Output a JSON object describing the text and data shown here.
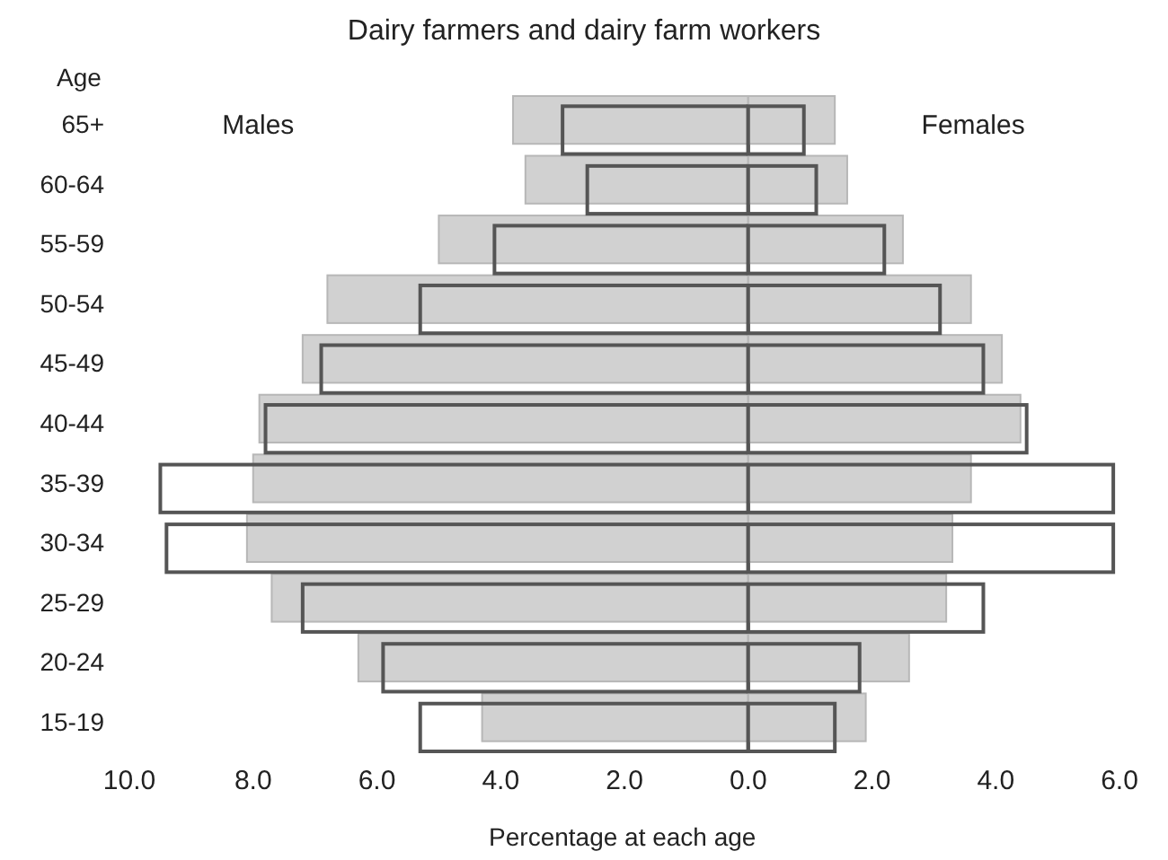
{
  "chart_data": {
    "type": "bar",
    "orientation": "horizontal",
    "title": "Dairy farmers and dairy farm workers",
    "ylabel": "Age",
    "xlabel": "Percentage at each age",
    "categories": [
      "65+",
      "60-64",
      "55-59",
      "50-54",
      "45-49",
      "40-44",
      "35-39",
      "30-34",
      "25-29",
      "20-24",
      "15-19"
    ],
    "series": [
      {
        "color": "#cccccc",
        "values": [
          -3.8,
          -3.6,
          -5.0,
          -6.8,
          -7.2,
          -7.9,
          -8.0,
          -8.1,
          -7.7,
          -6.3,
          -4.3
        ]
      },
      {
        "color": "#555555",
        "values": [
          -3.0,
          -2.6,
          -4.1,
          -5.3,
          -6.9,
          -7.8,
          -9.5,
          -9.4,
          -7.2,
          -5.9,
          -5.3
        ]
      },
      {
        "color": "#cccccc",
        "values": [
          1.4,
          1.6,
          2.5,
          3.6,
          4.1,
          4.4,
          3.6,
          3.3,
          3.2,
          2.6,
          1.9
        ]
      },
      {
        "color": "#555555",
        "values": [
          0.9,
          1.1,
          2.2,
          3.1,
          3.8,
          4.5,
          5.9,
          5.9,
          3.8,
          1.8,
          1.4
        ]
      }
    ],
    "xlim": [
      -10,
      6
    ],
    "xticks": [
      {
        "value": -10,
        "label": "10.0"
      },
      {
        "value": -8,
        "label": "8.0"
      },
      {
        "value": -6,
        "label": "6.0"
      },
      {
        "value": -4,
        "label": "4.0"
      },
      {
        "value": -2,
        "label": "2.0"
      },
      {
        "value": 0,
        "label": "0.0"
      },
      {
        "value": 2,
        "label": "2.0"
      },
      {
        "value": 4,
        "label": "4.0"
      },
      {
        "value": 6,
        "label": "6.0"
      }
    ],
    "annotations": [
      "Males",
      "Females"
    ],
    "grid": false
  }
}
